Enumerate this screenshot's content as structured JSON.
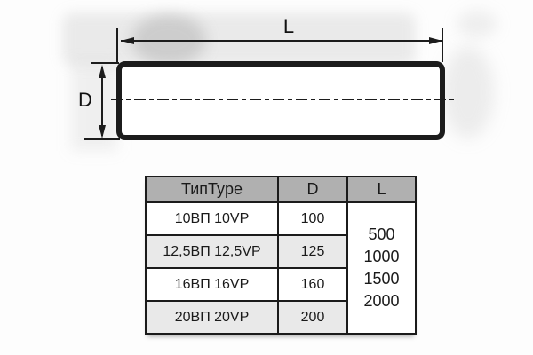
{
  "diagram": {
    "length_label": "L",
    "diameter_label": "D"
  },
  "table": {
    "headers": {
      "type": "ТипType",
      "d": "D",
      "l": "L"
    },
    "rows": [
      {
        "type": "10ВП 10VP",
        "d": "100"
      },
      {
        "type": "12,5ВП 12,5VP",
        "d": "125"
      },
      {
        "type": "16ВП 16VP",
        "d": "160"
      },
      {
        "type": "20ВП 20VP",
        "d": "200"
      }
    ],
    "l_values": [
      "500",
      "1000",
      "1500",
      "2000"
    ]
  },
  "colors": {
    "line_color": "#1c1c1c",
    "table_header_bg": "#b0b0b0",
    "table_alt_row_bg": "#e9e9e9"
  }
}
